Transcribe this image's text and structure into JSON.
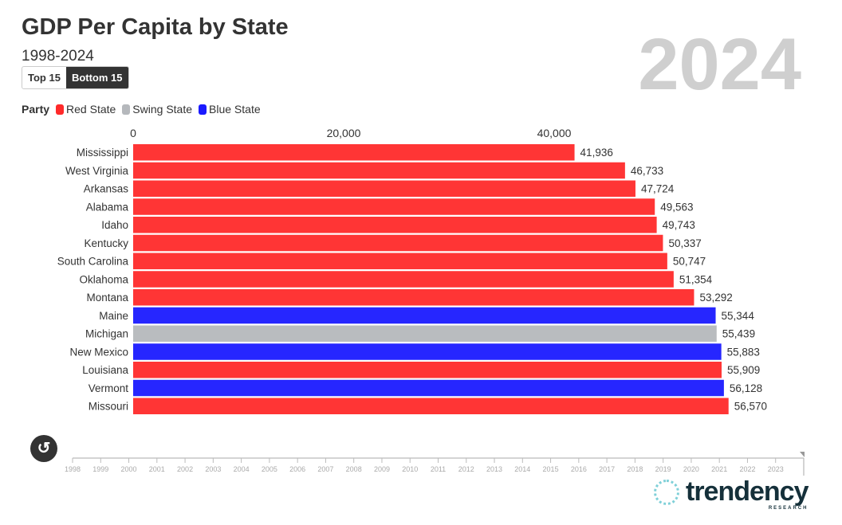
{
  "header": {
    "title": "GDP Per Capita by State",
    "subtitle": "1998-2024"
  },
  "toggle": {
    "top": "Top 15",
    "bottom": "Bottom 15",
    "active": "Bottom 15"
  },
  "legend": {
    "title": "Party",
    "items": [
      {
        "label": "Red State",
        "color": "#ff2a2a"
      },
      {
        "label": "Swing State",
        "color": "#b5b8bc"
      },
      {
        "label": "Blue State",
        "color": "#1a1aff"
      }
    ]
  },
  "colors": {
    "Red": "#ff2a2a",
    "Swing": "#b5b8bc",
    "Blue": "#1a1aff"
  },
  "chart_data": {
    "type": "bar",
    "orientation": "horizontal",
    "year": "2024",
    "xticks": [
      0,
      20000,
      40000
    ],
    "xtick_labels": [
      "0",
      "20,000",
      "40,000"
    ],
    "categories": [
      "Mississippi",
      "West Virginia",
      "Arkansas",
      "Alabama",
      "Idaho",
      "Kentucky",
      "South Carolina",
      "Oklahoma",
      "Montana",
      "Maine",
      "Michigan",
      "New Mexico",
      "Louisiana",
      "Vermont",
      "Missouri"
    ],
    "values": [
      41936,
      46733,
      47724,
      49563,
      49743,
      50337,
      50747,
      51354,
      53292,
      55344,
      55439,
      55883,
      55909,
      56128,
      56570
    ],
    "value_labels": [
      "41,936",
      "46,733",
      "47,724",
      "49,563",
      "49,743",
      "50,337",
      "50,747",
      "51,354",
      "53,292",
      "55,344",
      "55,439",
      "55,883",
      "55,909",
      "56,128",
      "56,570"
    ],
    "party": [
      "Red",
      "Red",
      "Red",
      "Red",
      "Red",
      "Red",
      "Red",
      "Red",
      "Red",
      "Blue",
      "Swing",
      "Blue",
      "Red",
      "Blue",
      "Red"
    ]
  },
  "timeline": {
    "years": [
      "1998",
      "1999",
      "2000",
      "2001",
      "2002",
      "2003",
      "2004",
      "2005",
      "2006",
      "2007",
      "2008",
      "2009",
      "2010",
      "2011",
      "2012",
      "2013",
      "2014",
      "2015",
      "2016",
      "2017",
      "2018",
      "2019",
      "2020",
      "2021",
      "2022",
      "2023"
    ],
    "current": "2024"
  },
  "logo": {
    "name": "trendency",
    "sub": "RESEARCH"
  }
}
